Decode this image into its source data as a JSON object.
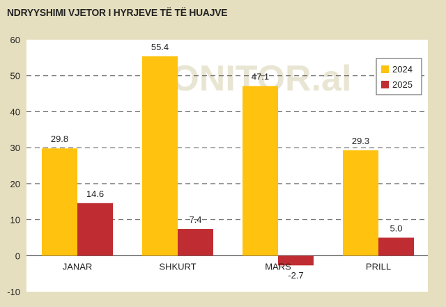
{
  "title": "NDRYYSHIMI VJETOR I HYRJEVE TË TË HUAJVE",
  "watermark": "MONITOR.al",
  "colors": {
    "background": "#e6dfbf",
    "plot_background": "#ffffff",
    "series_2024": "#ffc20e",
    "series_2025": "#bf2d32",
    "grid": "#555555"
  },
  "chart_data": {
    "type": "bar",
    "categories": [
      "JANAR",
      "SHKURT",
      "MARS",
      "PRILL"
    ],
    "series": [
      {
        "name": "2024",
        "values": [
          29.8,
          55.4,
          47.1,
          29.3
        ]
      },
      {
        "name": "2025",
        "values": [
          14.6,
          7.4,
          -2.7,
          5.0
        ]
      }
    ],
    "data_labels": [
      [
        "29.8",
        "55.4",
        "47.1",
        "29.3"
      ],
      [
        "14.6",
        "7.4",
        "-2.7",
        "5.0"
      ]
    ],
    "ylim": [
      -10,
      60
    ],
    "yticks": [
      "-10",
      "0",
      "10",
      "20",
      "30",
      "40",
      "50",
      "60"
    ],
    "ytick_values": [
      -10,
      0,
      10,
      20,
      30,
      40,
      50,
      60
    ],
    "grid": true,
    "legend_position": "top-right"
  }
}
